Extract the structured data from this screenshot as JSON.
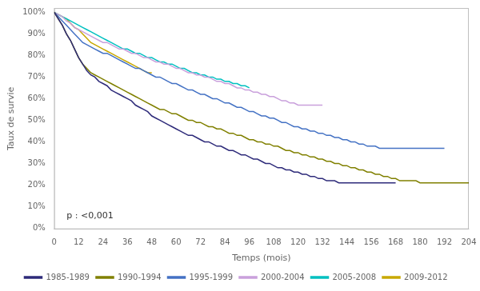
{
  "chart_data": {
    "type": "line",
    "xlabel": "Temps (mois)",
    "ylabel": "Taux de survie",
    "annotation": "p : <0,001",
    "xlim": [
      0,
      204
    ],
    "ylim": [
      -0.005,
      1.02
    ],
    "xticks": [
      0,
      12,
      24,
      36,
      48,
      60,
      72,
      84,
      96,
      108,
      120,
      132,
      144,
      156,
      168,
      180,
      192,
      204
    ],
    "yticks": [
      {
        "value": 0.0,
        "label": "0%"
      },
      {
        "value": 0.1,
        "label": "10%"
      },
      {
        "value": 0.2,
        "label": "20%"
      },
      {
        "value": 0.3,
        "label": "30%"
      },
      {
        "value": 0.4,
        "label": "40%"
      },
      {
        "value": 0.5,
        "label": "50%"
      },
      {
        "value": 0.6,
        "label": "60%"
      },
      {
        "value": 0.7,
        "label": "70%"
      },
      {
        "value": 0.8,
        "label": "80%"
      },
      {
        "value": 0.9,
        "label": "90%"
      },
      {
        "value": 1.0,
        "label": "100%"
      }
    ],
    "grid": false,
    "legend": "bottom",
    "series": [
      {
        "name": "1985-1989",
        "color": "#2e2b7a",
        "x": [
          0,
          2,
          4,
          6,
          8,
          10,
          12,
          14,
          16,
          18,
          20,
          22,
          24,
          26,
          28,
          30,
          32,
          34,
          36,
          38,
          40,
          42,
          44,
          46,
          48,
          50,
          52,
          54,
          56,
          58,
          60,
          62,
          64,
          66,
          68,
          70,
          72,
          74,
          76,
          78,
          80,
          82,
          84,
          86,
          88,
          90,
          92,
          94,
          96,
          98,
          100,
          102,
          104,
          106,
          108,
          110,
          112,
          114,
          116,
          118,
          120,
          122,
          124,
          126,
          128,
          130,
          132,
          134,
          136,
          138,
          140,
          142,
          144,
          146,
          148,
          150,
          152,
          154,
          156,
          158,
          160,
          162,
          164,
          166,
          168
        ],
        "values": [
          1.0,
          0.97,
          0.94,
          0.9,
          0.87,
          0.83,
          0.79,
          0.76,
          0.73,
          0.71,
          0.7,
          0.68,
          0.67,
          0.66,
          0.64,
          0.63,
          0.62,
          0.61,
          0.6,
          0.59,
          0.57,
          0.56,
          0.55,
          0.54,
          0.52,
          0.51,
          0.5,
          0.49,
          0.48,
          0.47,
          0.46,
          0.45,
          0.44,
          0.43,
          0.43,
          0.42,
          0.41,
          0.4,
          0.4,
          0.39,
          0.38,
          0.38,
          0.37,
          0.36,
          0.36,
          0.35,
          0.34,
          0.34,
          0.33,
          0.32,
          0.32,
          0.31,
          0.3,
          0.3,
          0.29,
          0.28,
          0.28,
          0.27,
          0.27,
          0.26,
          0.26,
          0.25,
          0.25,
          0.24,
          0.24,
          0.23,
          0.23,
          0.22,
          0.22,
          0.22,
          0.21,
          0.21,
          0.21,
          0.21,
          0.21,
          0.21,
          0.21,
          0.21,
          0.21,
          0.21,
          0.21,
          0.21,
          0.21,
          0.21,
          0.21
        ]
      },
      {
        "name": "1990-1994",
        "color": "#808000",
        "x": [
          0,
          2,
          4,
          6,
          8,
          10,
          12,
          14,
          16,
          18,
          20,
          22,
          24,
          26,
          28,
          30,
          32,
          34,
          36,
          38,
          40,
          42,
          44,
          46,
          48,
          50,
          52,
          54,
          56,
          58,
          60,
          62,
          64,
          66,
          68,
          70,
          72,
          74,
          76,
          78,
          80,
          82,
          84,
          86,
          88,
          90,
          92,
          94,
          96,
          98,
          100,
          102,
          104,
          106,
          108,
          110,
          112,
          114,
          116,
          118,
          120,
          122,
          124,
          126,
          128,
          130,
          132,
          134,
          136,
          138,
          140,
          142,
          144,
          146,
          148,
          150,
          152,
          154,
          156,
          158,
          160,
          162,
          164,
          166,
          168,
          170,
          172,
          174,
          176,
          178,
          180,
          182,
          184,
          186,
          188,
          190,
          192,
          194,
          196,
          198,
          200,
          202,
          204
        ],
        "values": [
          1.0,
          0.97,
          0.94,
          0.9,
          0.87,
          0.83,
          0.79,
          0.76,
          0.74,
          0.72,
          0.71,
          0.7,
          0.69,
          0.68,
          0.67,
          0.66,
          0.65,
          0.64,
          0.63,
          0.62,
          0.61,
          0.6,
          0.59,
          0.58,
          0.57,
          0.56,
          0.55,
          0.55,
          0.54,
          0.53,
          0.53,
          0.52,
          0.51,
          0.5,
          0.5,
          0.49,
          0.49,
          0.48,
          0.47,
          0.47,
          0.46,
          0.46,
          0.45,
          0.44,
          0.44,
          0.43,
          0.43,
          0.42,
          0.41,
          0.41,
          0.4,
          0.4,
          0.39,
          0.39,
          0.38,
          0.38,
          0.37,
          0.36,
          0.36,
          0.35,
          0.35,
          0.34,
          0.34,
          0.33,
          0.33,
          0.32,
          0.32,
          0.31,
          0.31,
          0.3,
          0.3,
          0.29,
          0.29,
          0.28,
          0.28,
          0.27,
          0.27,
          0.26,
          0.26,
          0.25,
          0.25,
          0.24,
          0.24,
          0.23,
          0.23,
          0.22,
          0.22,
          0.22,
          0.22,
          0.22,
          0.21,
          0.21,
          0.21,
          0.21,
          0.21,
          0.21,
          0.21,
          0.21,
          0.21,
          0.21,
          0.21,
          0.21,
          0.21
        ]
      },
      {
        "name": "1995-1999",
        "color": "#4472c4",
        "x": [
          0,
          2,
          4,
          6,
          8,
          10,
          12,
          14,
          16,
          18,
          20,
          22,
          24,
          26,
          28,
          30,
          32,
          34,
          36,
          38,
          40,
          42,
          44,
          46,
          48,
          50,
          52,
          54,
          56,
          58,
          60,
          62,
          64,
          66,
          68,
          70,
          72,
          74,
          76,
          78,
          80,
          82,
          84,
          86,
          88,
          90,
          92,
          94,
          96,
          98,
          100,
          102,
          104,
          106,
          108,
          110,
          112,
          114,
          116,
          118,
          120,
          122,
          124,
          126,
          128,
          130,
          132,
          134,
          136,
          138,
          140,
          142,
          144,
          146,
          148,
          150,
          152,
          154,
          156,
          158,
          160,
          162,
          164,
          166,
          168,
          170,
          172,
          174,
          176,
          178,
          180,
          182,
          184,
          186,
          188,
          190,
          192
        ],
        "values": [
          1.0,
          0.98,
          0.96,
          0.94,
          0.92,
          0.9,
          0.88,
          0.86,
          0.85,
          0.84,
          0.83,
          0.82,
          0.81,
          0.81,
          0.8,
          0.79,
          0.78,
          0.77,
          0.76,
          0.75,
          0.74,
          0.74,
          0.73,
          0.72,
          0.71,
          0.7,
          0.7,
          0.69,
          0.68,
          0.67,
          0.67,
          0.66,
          0.65,
          0.64,
          0.64,
          0.63,
          0.62,
          0.62,
          0.61,
          0.6,
          0.6,
          0.59,
          0.58,
          0.58,
          0.57,
          0.56,
          0.56,
          0.55,
          0.54,
          0.54,
          0.53,
          0.52,
          0.52,
          0.51,
          0.51,
          0.5,
          0.49,
          0.49,
          0.48,
          0.47,
          0.47,
          0.46,
          0.46,
          0.45,
          0.45,
          0.44,
          0.44,
          0.43,
          0.43,
          0.42,
          0.42,
          0.41,
          0.41,
          0.4,
          0.4,
          0.39,
          0.39,
          0.38,
          0.38,
          0.38,
          0.37,
          0.37,
          0.37,
          0.37,
          0.37,
          0.37,
          0.37,
          0.37,
          0.37,
          0.37,
          0.37,
          0.37,
          0.37,
          0.37,
          0.37,
          0.37,
          0.37
        ]
      },
      {
        "name": "2000-2004",
        "color": "#c9a0dc",
        "x": [
          0,
          2,
          4,
          6,
          8,
          10,
          12,
          14,
          16,
          18,
          20,
          22,
          24,
          26,
          28,
          30,
          32,
          34,
          36,
          38,
          40,
          42,
          44,
          46,
          48,
          50,
          52,
          54,
          56,
          58,
          60,
          62,
          64,
          66,
          68,
          70,
          72,
          74,
          76,
          78,
          80,
          82,
          84,
          86,
          88,
          90,
          92,
          94,
          96,
          98,
          100,
          102,
          104,
          106,
          108,
          110,
          112,
          114,
          116,
          118,
          120,
          122,
          124,
          126,
          128,
          130,
          132
        ],
        "values": [
          1.0,
          0.99,
          0.98,
          0.96,
          0.95,
          0.93,
          0.92,
          0.91,
          0.9,
          0.89,
          0.88,
          0.87,
          0.86,
          0.86,
          0.85,
          0.84,
          0.83,
          0.83,
          0.82,
          0.81,
          0.81,
          0.8,
          0.79,
          0.79,
          0.78,
          0.77,
          0.77,
          0.76,
          0.76,
          0.75,
          0.74,
          0.74,
          0.73,
          0.72,
          0.72,
          0.71,
          0.71,
          0.7,
          0.7,
          0.69,
          0.68,
          0.68,
          0.67,
          0.67,
          0.66,
          0.65,
          0.65,
          0.64,
          0.64,
          0.63,
          0.63,
          0.62,
          0.62,
          0.61,
          0.61,
          0.6,
          0.59,
          0.59,
          0.58,
          0.58,
          0.57,
          0.57,
          0.57,
          0.57,
          0.57,
          0.57,
          0.57
        ]
      },
      {
        "name": "2005-2008",
        "color": "#00c0c0",
        "x": [
          0,
          2,
          4,
          6,
          8,
          10,
          12,
          14,
          16,
          18,
          20,
          22,
          24,
          26,
          28,
          30,
          32,
          34,
          36,
          38,
          40,
          42,
          44,
          46,
          48,
          50,
          52,
          54,
          56,
          58,
          60,
          62,
          64,
          66,
          68,
          70,
          72,
          74,
          76,
          78,
          80,
          82,
          84,
          86,
          88,
          90,
          92,
          94,
          96
        ],
        "values": [
          1.0,
          0.99,
          0.98,
          0.97,
          0.96,
          0.95,
          0.94,
          0.93,
          0.92,
          0.91,
          0.9,
          0.89,
          0.88,
          0.87,
          0.86,
          0.85,
          0.84,
          0.83,
          0.83,
          0.82,
          0.81,
          0.81,
          0.8,
          0.79,
          0.79,
          0.78,
          0.77,
          0.77,
          0.76,
          0.76,
          0.75,
          0.74,
          0.74,
          0.73,
          0.72,
          0.72,
          0.71,
          0.71,
          0.7,
          0.7,
          0.69,
          0.69,
          0.68,
          0.68,
          0.67,
          0.67,
          0.66,
          0.66,
          0.65
        ]
      },
      {
        "name": "2009-2012",
        "color": "#c8a800",
        "x": [
          0,
          2,
          4,
          6,
          8,
          10,
          12,
          14,
          16,
          18,
          20,
          22,
          24,
          26,
          28,
          30,
          32,
          34,
          36,
          38,
          40,
          42,
          44,
          46,
          48
        ],
        "values": [
          1.0,
          0.99,
          0.98,
          0.97,
          0.95,
          0.93,
          0.92,
          0.9,
          0.88,
          0.86,
          0.85,
          0.84,
          0.83,
          0.82,
          0.81,
          0.8,
          0.79,
          0.78,
          0.77,
          0.76,
          0.75,
          0.74,
          0.73,
          0.72,
          0.72
        ]
      }
    ]
  }
}
